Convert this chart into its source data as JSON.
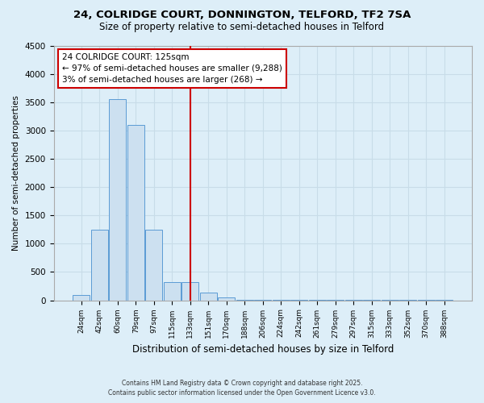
{
  "title1": "24, COLRIDGE COURT, DONNINGTON, TELFORD, TF2 7SA",
  "title2": "Size of property relative to semi-detached houses in Telford",
  "xlabel": "Distribution of semi-detached houses by size in Telford",
  "ylabel": "Number of semi-detached properties",
  "bar_labels": [
    "24sqm",
    "42sqm",
    "60sqm",
    "79sqm",
    "97sqm",
    "115sqm",
    "133sqm",
    "151sqm",
    "170sqm",
    "188sqm",
    "206sqm",
    "224sqm",
    "242sqm",
    "261sqm",
    "279sqm",
    "297sqm",
    "315sqm",
    "333sqm",
    "352sqm",
    "370sqm",
    "388sqm"
  ],
  "bar_values": [
    100,
    1250,
    3550,
    3100,
    1250,
    320,
    320,
    130,
    50,
    15,
    8,
    4,
    3,
    3,
    2,
    2,
    2,
    1,
    1,
    1,
    1
  ],
  "bar_color": "#cce0f0",
  "bar_edge_color": "#5b9bd5",
  "vline_index": 6,
  "annotation_title": "24 COLRIDGE COURT: 125sqm",
  "annotation_line1": "← 97% of semi-detached houses are smaller (9,288)",
  "annotation_line2": "3% of semi-detached houses are larger (268) →",
  "annotation_box_color": "#ffffff",
  "annotation_box_edge": "#cc0000",
  "vline_color": "#cc0000",
  "ylim": [
    0,
    4500
  ],
  "yticks": [
    0,
    500,
    1000,
    1500,
    2000,
    2500,
    3000,
    3500,
    4000,
    4500
  ],
  "footnote1": "Contains HM Land Registry data © Crown copyright and database right 2025.",
  "footnote2": "Contains public sector information licensed under the Open Government Licence v3.0.",
  "bg_color": "#ddeef8",
  "grid_color": "#c8dce8"
}
